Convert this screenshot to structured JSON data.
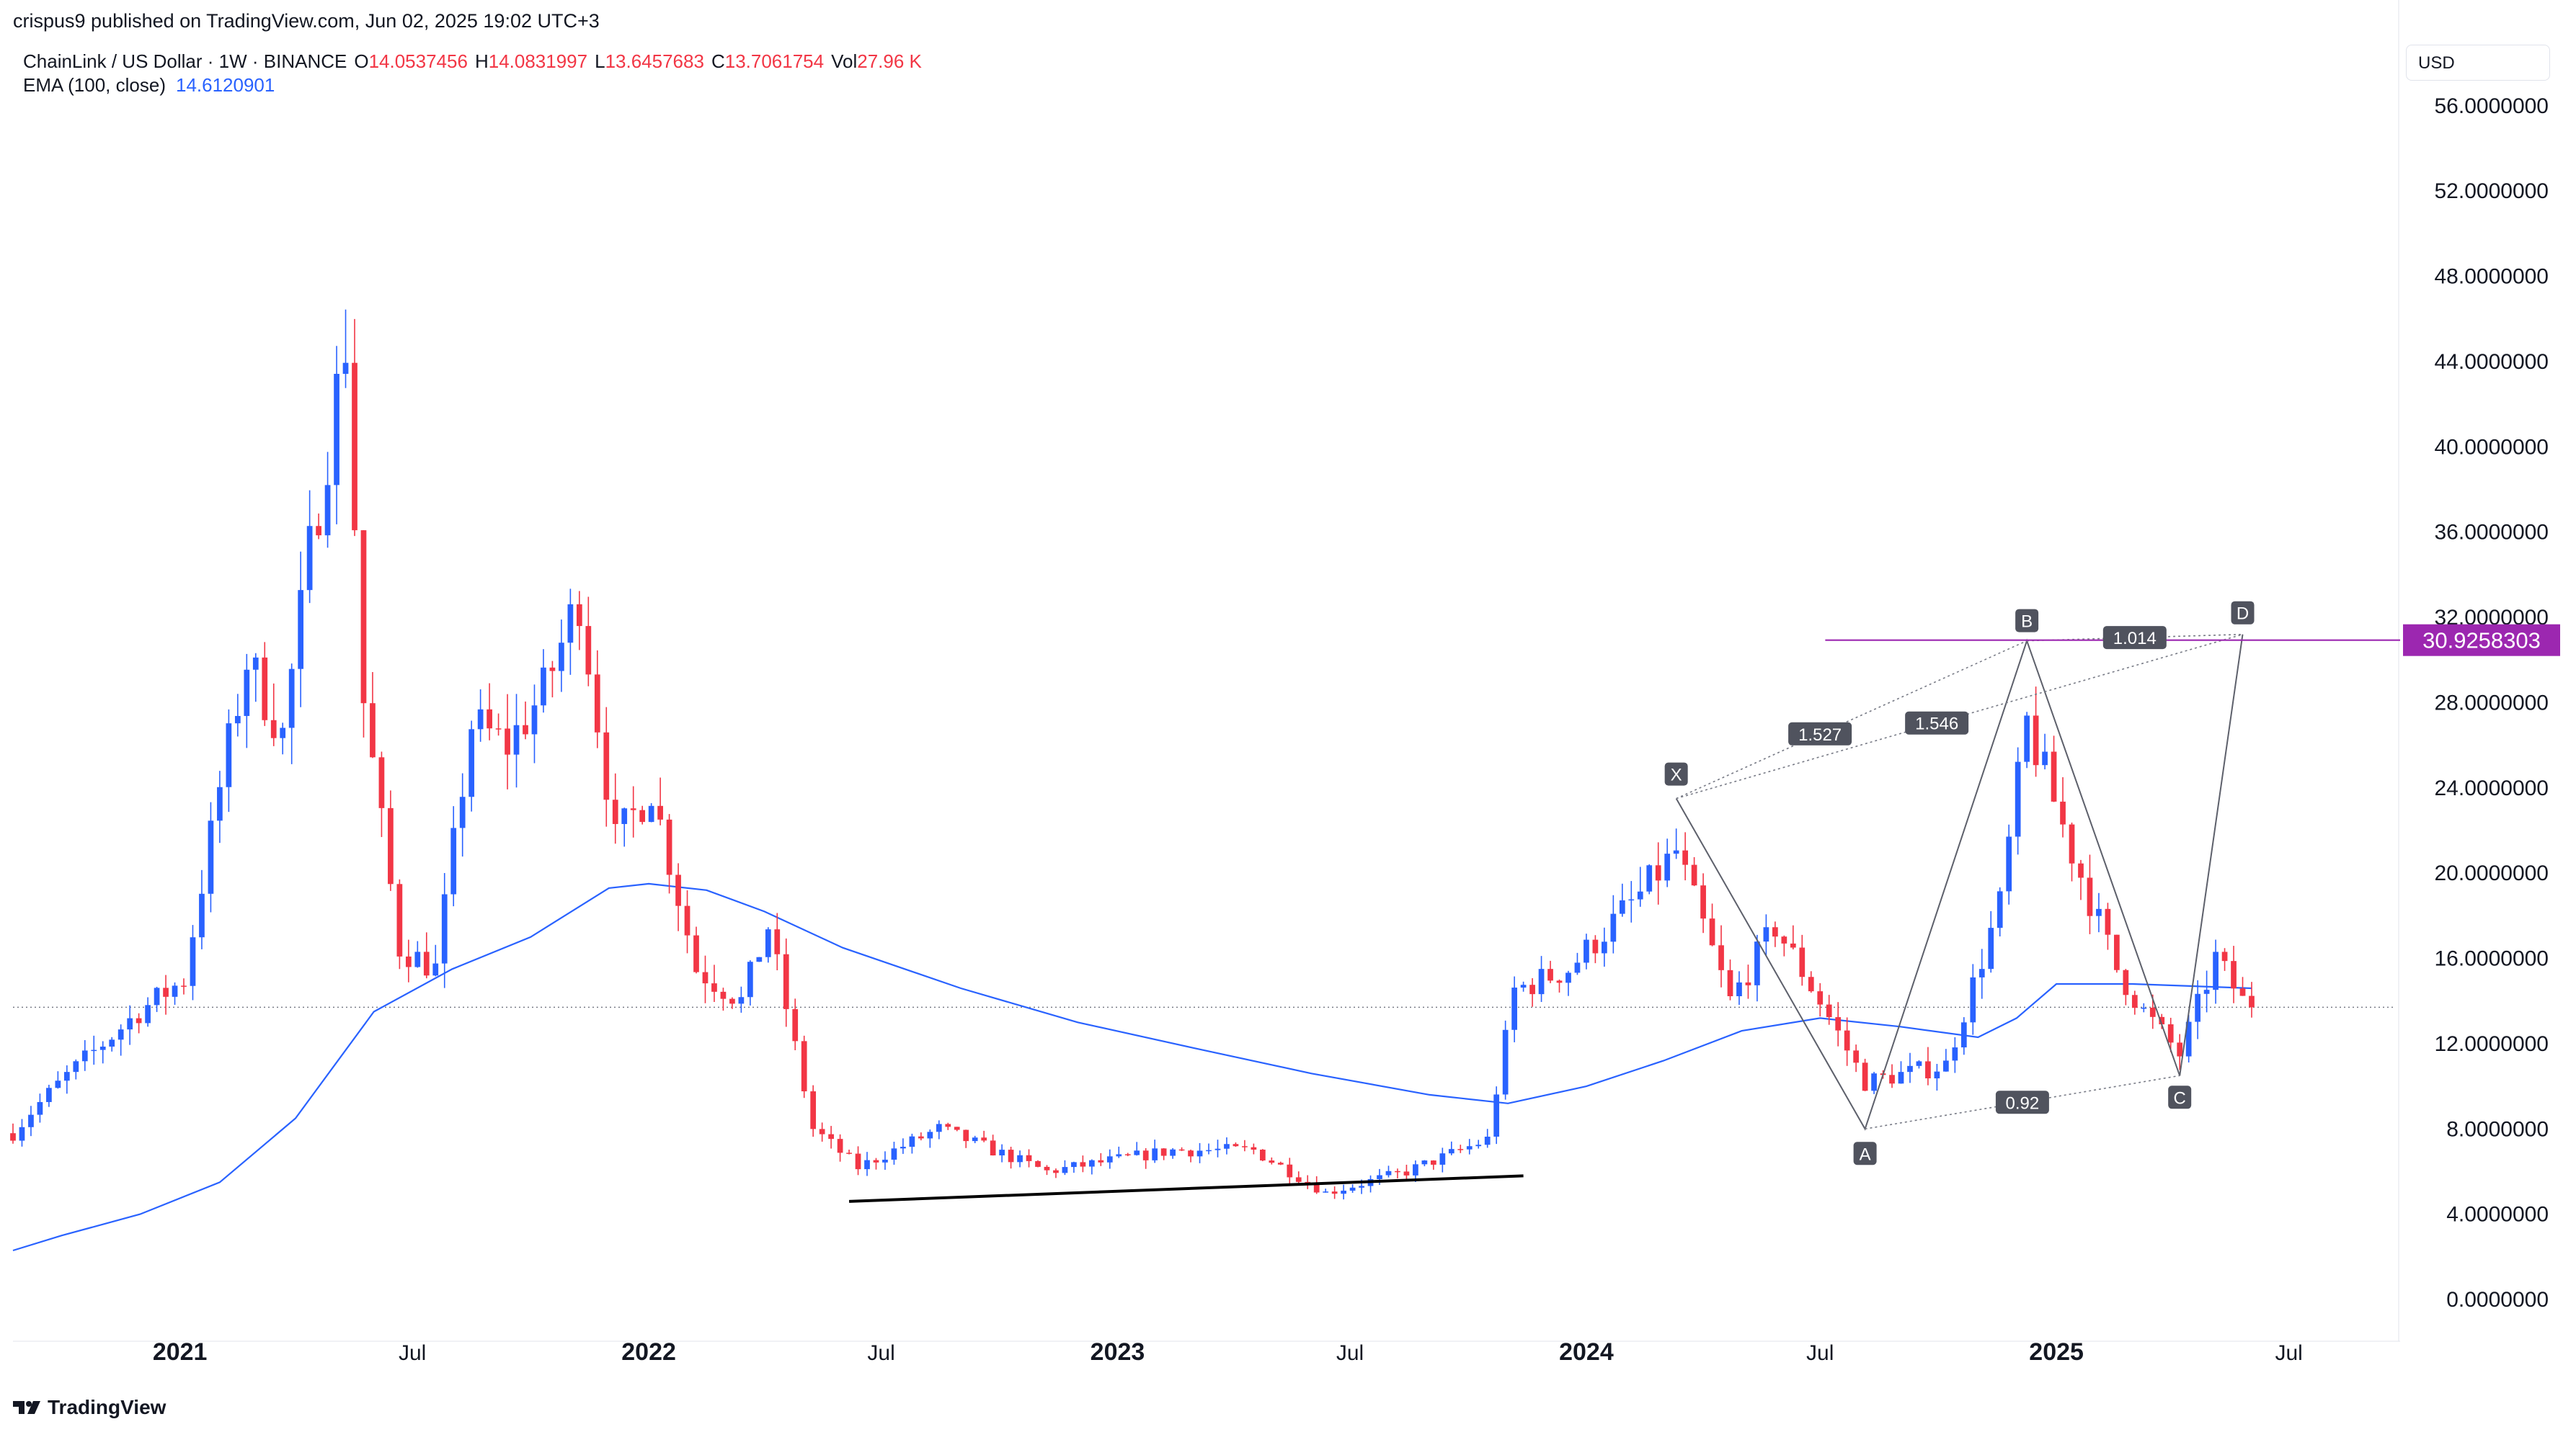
{
  "header": {
    "published": "crispus9 published on TradingView.com, Jun 02, 2025 19:02 UTC+3",
    "symbol": "ChainLink / US Dollar · 1W · BINANCE",
    "ohlc": [
      {
        "k": "O",
        "v": "14.0537456"
      },
      {
        "k": "H",
        "v": "14.0831997"
      },
      {
        "k": "L",
        "v": "13.6457683"
      },
      {
        "k": "C",
        "v": "13.7061754"
      },
      {
        "k": "Vol",
        "v": "27.96 K"
      }
    ],
    "ema_label": "EMA (100, close)",
    "ema_value": "14.6120901"
  },
  "currency": "USD",
  "brand": "TradingView",
  "colors": {
    "up": "#2962ff",
    "down": "#f23645",
    "ema": "#2962ff",
    "pattern": "#9c27b0",
    "level": "#9c27b0"
  },
  "chart_data": {
    "type": "candlestick",
    "title": "ChainLink / US Dollar · 1W · BINANCE",
    "y_ticks": [
      "0.0000000",
      "4.0000000",
      "8.0000000",
      "12.0000000",
      "16.0000000",
      "20.0000000",
      "24.0000000",
      "28.0000000",
      "32.0000000",
      "36.0000000",
      "40.0000000",
      "44.0000000",
      "48.0000000",
      "52.0000000",
      "56.0000000"
    ],
    "ylim": [
      -2.5,
      59
    ],
    "x_ticks": [
      {
        "label": "2021",
        "date": "2021-01-01",
        "bold": true
      },
      {
        "label": "Jul",
        "date": "2021-07-01",
        "bold": false
      },
      {
        "label": "2022",
        "date": "2022-01-01",
        "bold": true
      },
      {
        "label": "Jul",
        "date": "2022-07-01",
        "bold": false
      },
      {
        "label": "2023",
        "date": "2023-01-01",
        "bold": true
      },
      {
        "label": "Jul",
        "date": "2023-07-01",
        "bold": false
      },
      {
        "label": "2024",
        "date": "2024-01-01",
        "bold": true
      },
      {
        "label": "Jul",
        "date": "2024-07-01",
        "bold": false
      },
      {
        "label": "2025",
        "date": "2025-01-01",
        "bold": true
      },
      {
        "label": "Jul",
        "date": "2025-07-01",
        "bold": false
      }
    ],
    "xlim": [
      "2020-08-24",
      "2025-09-20"
    ],
    "last_price": 13.7061754,
    "price_label": {
      "value": "30.9258303",
      "price": 30.93
    },
    "ema_series": [
      [
        "2020-08-24",
        2.3
      ],
      [
        "2020-10-01",
        3.0
      ],
      [
        "2020-12-01",
        4.0
      ],
      [
        "2021-02-01",
        5.5
      ],
      [
        "2021-04-01",
        8.5
      ],
      [
        "2021-06-01",
        13.5
      ],
      [
        "2021-08-01",
        15.5
      ],
      [
        "2021-10-01",
        17.0
      ],
      [
        "2021-12-01",
        19.3
      ],
      [
        "2022-01-01",
        19.5
      ],
      [
        "2022-02-15",
        19.2
      ],
      [
        "2022-04-01",
        18.2
      ],
      [
        "2022-06-01",
        16.5
      ],
      [
        "2022-09-01",
        14.6
      ],
      [
        "2022-12-01",
        13.0
      ],
      [
        "2023-03-01",
        11.8
      ],
      [
        "2023-06-01",
        10.6
      ],
      [
        "2023-09-01",
        9.6
      ],
      [
        "2023-11-01",
        9.2
      ],
      [
        "2024-01-01",
        10.0
      ],
      [
        "2024-03-01",
        11.2
      ],
      [
        "2024-05-01",
        12.6
      ],
      [
        "2024-07-01",
        13.2
      ],
      [
        "2024-09-01",
        12.8
      ],
      [
        "2024-11-01",
        12.3
      ],
      [
        "2024-12-01",
        13.2
      ],
      [
        "2025-01-01",
        14.8
      ],
      [
        "2025-03-01",
        14.8
      ],
      [
        "2025-06-02",
        14.6
      ]
    ],
    "ohlc_anchors": [
      [
        "2020-08-24",
        7.8
      ],
      [
        "2020-09-07",
        8.8
      ],
      [
        "2020-10-05",
        10.5
      ],
      [
        "2020-11-02",
        12.0
      ],
      [
        "2020-11-30",
        13.5
      ],
      [
        "2021-01-04",
        15.0
      ],
      [
        "2021-02-01",
        24.0
      ],
      [
        "2021-02-22",
        30.0
      ],
      [
        "2021-03-22",
        26.5
      ],
      [
        "2021-04-12",
        35.0
      ],
      [
        "2021-05-10",
        45.0
      ],
      [
        "2021-05-24",
        28.0
      ],
      [
        "2021-06-21",
        16.5
      ],
      [
        "2021-07-19",
        15.5
      ],
      [
        "2021-08-16",
        27.0
      ],
      [
        "2021-09-13",
        26.0
      ],
      [
        "2021-10-11",
        28.5
      ],
      [
        "2021-11-08",
        33.0
      ],
      [
        "2021-12-06",
        21.5
      ],
      [
        "2022-01-03",
        24.0
      ],
      [
        "2022-02-07",
        15.5
      ],
      [
        "2022-03-14",
        14.0
      ],
      [
        "2022-04-04",
        17.5
      ],
      [
        "2022-05-09",
        8.0
      ],
      [
        "2022-06-13",
        6.2
      ],
      [
        "2022-08-15",
        8.0
      ],
      [
        "2022-11-07",
        6.0
      ],
      [
        "2023-02-13",
        7.0
      ],
      [
        "2023-04-17",
        7.0
      ],
      [
        "2023-06-12",
        5.0
      ],
      [
        "2023-08-14",
        6.0
      ],
      [
        "2023-10-16",
        7.5
      ],
      [
        "2023-11-06",
        14.5
      ],
      [
        "2023-12-18",
        15.5
      ],
      [
        "2024-02-12",
        19.0
      ],
      [
        "2024-03-11",
        21.0
      ],
      [
        "2024-04-22",
        14.0
      ],
      [
        "2024-05-27",
        17.5
      ],
      [
        "2024-07-01",
        14.0
      ],
      [
        "2024-08-05",
        10.2
      ],
      [
        "2024-10-07",
        11.0
      ],
      [
        "2024-11-18",
        18.5
      ],
      [
        "2024-12-09",
        27.0
      ],
      [
        "2025-01-13",
        21.0
      ],
      [
        "2025-02-17",
        15.5
      ],
      [
        "2025-03-10",
        13.5
      ],
      [
        "2025-04-07",
        11.5
      ],
      [
        "2025-05-05",
        16.0
      ],
      [
        "2025-05-26",
        14.0
      ],
      [
        "2025-06-02",
        13.7
      ]
    ],
    "support_line": [
      [
        "2022-06-06",
        4.6
      ],
      [
        "2023-11-13",
        5.8
      ]
    ],
    "harmonic": {
      "points": [
        {
          "label": "X",
          "date": "2024-03-11",
          "price": 23.5
        },
        {
          "label": "A",
          "date": "2024-08-05",
          "price": 8.0
        },
        {
          "label": "B",
          "date": "2024-12-09",
          "price": 30.9
        },
        {
          "label": "C",
          "date": "2025-04-07",
          "price": 10.5
        },
        {
          "label": "D",
          "date": "2025-05-26",
          "price": 31.2
        }
      ],
      "ratios": [
        {
          "label": "1.527",
          "between": [
            "X",
            "B"
          ]
        },
        {
          "label": "1.546",
          "between": [
            "X",
            "D"
          ]
        },
        {
          "label": "1.014",
          "between": [
            "B",
            "D"
          ]
        },
        {
          "label": "0.92",
          "between": [
            "A",
            "C"
          ]
        }
      ]
    }
  }
}
